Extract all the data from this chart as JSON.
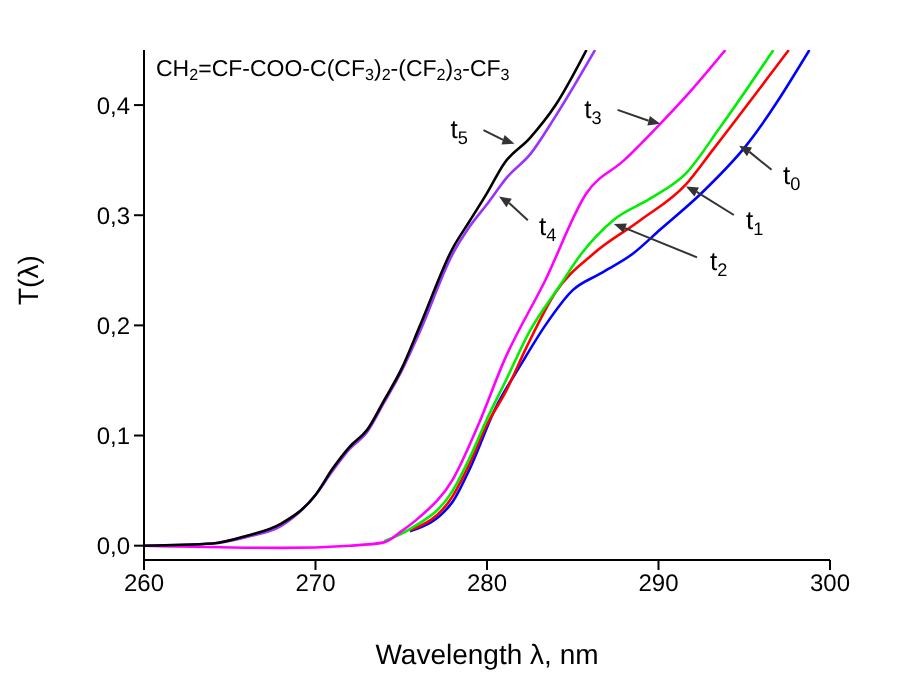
{
  "chart_data": {
    "type": "line",
    "xlabel": "Wavelength λ, nm",
    "ylabel": "T(λ)",
    "xlim": [
      260,
      300
    ],
    "ylim": [
      -0.013,
      0.45
    ],
    "xticks": [
      260,
      270,
      280,
      290,
      300
    ],
    "yticks": [
      {
        "value": 0,
        "label": "0,0"
      },
      {
        "value": 0.1,
        "label": "0,1"
      },
      {
        "value": 0.2,
        "label": "0,2"
      },
      {
        "value": 0.3,
        "label": "0,3"
      },
      {
        "value": 0.4,
        "label": "0,4"
      }
    ],
    "grid": false,
    "legend": false,
    "series": [
      {
        "color": "#0000ff",
        "x": [
          275.5,
          278,
          279,
          280.5,
          282,
          283.4,
          285,
          286.6,
          288.5,
          290.1,
          292.5,
          295.1,
          298.8
        ],
        "values": [
          0.013,
          0.04,
          0.07,
          0.125,
          0.165,
          0.2,
          0.232,
          0.247,
          0.265,
          0.287,
          0.32,
          0.363,
          0.45
        ]
      },
      {
        "color": "#ff0000",
        "x": [
          275.5,
          278,
          279,
          280,
          281.1,
          282.3,
          284,
          286.2,
          288.9,
          291.6,
          293.2,
          297.6
        ],
        "values": [
          0.014,
          0.045,
          0.075,
          0.11,
          0.14,
          0.18,
          0.23,
          0.265,
          0.295,
          0.328,
          0.36,
          0.45
        ]
      },
      {
        "color": "#00ee00",
        "x": [
          274,
          275.5,
          278,
          279,
          280,
          281.1,
          282.5,
          284.2,
          285.5,
          287.4,
          289.5,
          291.6,
          293.6,
          296.7
        ],
        "values": [
          0.004,
          0.015,
          0.05,
          0.08,
          0.115,
          0.15,
          0.195,
          0.235,
          0.265,
          0.296,
          0.315,
          0.338,
          0.38,
          0.45
        ]
      },
      {
        "color": "#ff00ff",
        "x": [
          260,
          268,
          272,
          274,
          275,
          276,
          278,
          279.5,
          281,
          283.4,
          285.8,
          288,
          290.1,
          292,
          293.9
        ],
        "values": [
          0,
          -0.002,
          0,
          0.003,
          0.013,
          0.025,
          0.06,
          0.11,
          0.168,
          0.241,
          0.32,
          0.35,
          0.383,
          0.415,
          0.45
        ]
      },
      {
        "color": "#9933ff",
        "x": [
          260,
          264,
          266,
          268,
          270,
          271,
          272,
          273,
          274,
          275,
          276.1,
          278,
          279,
          280,
          281.2,
          282.5,
          284,
          286.3
        ],
        "values": [
          0,
          0.002,
          0.008,
          0.018,
          0.046,
          0.068,
          0.088,
          0.103,
          0.13,
          0.158,
          0.195,
          0.265,
          0.29,
          0.31,
          0.335,
          0.355,
          0.39,
          0.45
        ]
      },
      {
        "color": "#000000",
        "x": [
          260,
          264,
          266,
          268,
          270,
          271,
          272,
          273,
          274,
          275,
          276.1,
          278,
          279,
          280,
          281,
          282.5,
          284,
          285.8
        ],
        "values": [
          0,
          0.002,
          0.009,
          0.02,
          0.046,
          0.07,
          0.09,
          0.105,
          0.132,
          0.16,
          0.2,
          0.27,
          0.295,
          0.32,
          0.347,
          0.37,
          0.4,
          0.45
        ]
      }
    ],
    "annotations": [
      "CH$_{2}$=CF-COO-C(CF$_{3}$)$_{2}$-(CF$_{2}$)$_{3}$-CF$_{3}$",
      {
        "text": "t$_{0}$",
        "x": 294.7,
        "y": 0.363
      },
      {
        "text": "t$_{1}$",
        "x": 291.6,
        "y": 0.326
      },
      {
        "text": "t$_{2}$",
        "x": 287.4,
        "y": 0.292
      },
      {
        "text": "t$_{3}$",
        "x": 290.1,
        "y": 0.383
      },
      {
        "text": "t$_{4}$",
        "x": 280.7,
        "y": 0.317
      },
      {
        "text": "t$_{5}$",
        "x": 281.6,
        "y": 0.365
      }
    ]
  }
}
